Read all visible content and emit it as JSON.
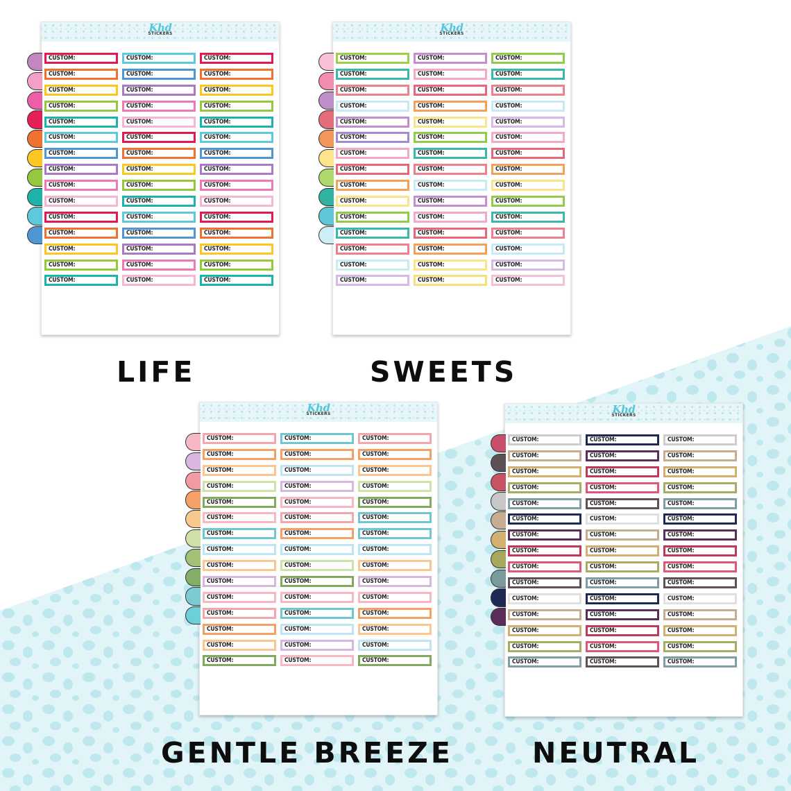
{
  "brand": {
    "script": "Khd",
    "word": "STICKERS"
  },
  "label_text": "CUSTOM:",
  "sheets": [
    {
      "title": "LIFE",
      "tab_colors": [
        "#c286c1",
        "#f3a0c7",
        "#ec5fa8",
        "#e61f57",
        "#f07030",
        "#fbc823",
        "#94c83d",
        "#1db3a8",
        "#5ec9dc",
        "#4f96d4"
      ],
      "columns": [
        [
          "#e31a52",
          "#f07030",
          "#fbc823",
          "#94c83d",
          "#1db3a8",
          "#5ec9dc",
          "#4f96d4",
          "#a979c4",
          "#ee79b7",
          "#f6b5d2",
          "#e31a52",
          "#f07030",
          "#fbc823",
          "#94c83d",
          "#1db3a8"
        ],
        [
          "#5ec9dc",
          "#4f96d4",
          "#a979c4",
          "#ee79b7",
          "#f6b5d2",
          "#e31a52",
          "#f07030",
          "#fbc823",
          "#94c83d",
          "#1db3a8",
          "#5ec9dc",
          "#4f96d4",
          "#a979c4",
          "#ee79b7",
          "#f6b5d2"
        ],
        [
          "#e31a52",
          "#f07030",
          "#fbc823",
          "#94c83d",
          "#1db3a8",
          "#5ec9dc",
          "#4f96d4",
          "#a979c4",
          "#ee79b7",
          "#f6b5d2",
          "#e31a52",
          "#f07030",
          "#fbc823",
          "#94c83d",
          "#1db3a8"
        ]
      ]
    },
    {
      "title": "SWEETS",
      "tab_colors": [
        "#f8c1d8",
        "#f28db0",
        "#c08ec8",
        "#e46c7b",
        "#f2975c",
        "#fde48a",
        "#b0d76a",
        "#32b2a1",
        "#5fc7d6",
        "#cdeef4"
      ],
      "columns": [
        [
          "#9dd049",
          "#3ab8ad",
          "#ef7f8b",
          "#c7ebf5",
          "#c48dd0",
          "#a58ad6",
          "#f5a9c8",
          "#e76778",
          "#f3a058",
          "#fae48a",
          "#8fcc4b",
          "#3ab8ad",
          "#ef7f8b",
          "#c7ebf5",
          "#d8b8e4"
        ],
        [
          "#c48dd0",
          "#f5a9c8",
          "#e76778",
          "#f3a058",
          "#fae48a",
          "#8fcc4b",
          "#3ab8ad",
          "#ef7f8b",
          "#c7ebf5",
          "#c48dd0",
          "#f5a9c8",
          "#e76778",
          "#f3a058",
          "#fae48a",
          "#f5e07c"
        ],
        [
          "#8fcc4b",
          "#3ab8ad",
          "#ef7f8b",
          "#c7ebf5",
          "#d8b8e4",
          "#f5a9c8",
          "#e76778",
          "#f3a058",
          "#fae48a",
          "#8fcc4b",
          "#3ab8ad",
          "#ef7f8b",
          "#c7ebf5",
          "#d8b8e4",
          "#f5c0d4"
        ]
      ]
    },
    {
      "title": "GENTLE BREEZE",
      "tab_colors": [
        "#f6b9c4",
        "#d9b7e1",
        "#f39aa2",
        "#f5a065",
        "#f7c98e",
        "#cfe0a8",
        "#a4bf76",
        "#85ad68",
        "#7bcbd2",
        "#6ccfd9"
      ],
      "columns": [
        [
          "#f3a7ad",
          "#f3a065",
          "#fbc68d",
          "#cce3a6",
          "#82aa5f",
          "#f7b8c4",
          "#6fc7cf",
          "#bfe4f4",
          "#fbc68d",
          "#d7b7e0",
          "#f7b8c4",
          "#f3a7ad",
          "#f3a065",
          "#fbc68d",
          "#82aa5f"
        ],
        [
          "#6fc7cf",
          "#f3a065",
          "#bfe4f4",
          "#d7b7e0",
          "#f7b8c4",
          "#f3a7ad",
          "#f3a065",
          "#bfe4f4",
          "#cce3a6",
          "#82aa5f",
          "#f7b8c4",
          "#6fc7cf",
          "#bfe4f4",
          "#d7b7e0",
          "#f7b8c4"
        ],
        [
          "#f3a7ad",
          "#f3a065",
          "#fbc68d",
          "#cce3a6",
          "#82aa5f",
          "#6fc7cf",
          "#6fc7cf",
          "#bfe4f4",
          "#fbc68d",
          "#d7b7e0",
          "#f7b8c4",
          "#f3a065",
          "#fbc68d",
          "#bfe4f4",
          "#82aa5f"
        ]
      ]
    },
    {
      "title": "NEUTRAL",
      "tab_colors": [
        "#c8506b",
        "#5c5156",
        "#c75462",
        "#c7c7c7",
        "#c6ad90",
        "#d1b070",
        "#a7a85c",
        "#7b9a9c",
        "#1d2952",
        "#5c2c5a"
      ],
      "columns": [
        [
          "#cccccc",
          "#c6ad90",
          "#d1b070",
          "#a8ac60",
          "#7f9ea6",
          "#1d2952",
          "#5c2c5a",
          "#c0395a",
          "#e0577a",
          "#5c5156",
          "#e0e0e0",
          "#c6ad90",
          "#d1b070",
          "#a8ac60",
          "#7f9ea6"
        ],
        [
          "#1d2952",
          "#5c2c5a",
          "#c0395a",
          "#e0577a",
          "#5c5156",
          "#e0e0e0",
          "#c6ad90",
          "#d1b070",
          "#a8ac60",
          "#7f9ea6",
          "#1d2952",
          "#5c2c5a",
          "#c0395a",
          "#e0577a",
          "#5c5156"
        ],
        [
          "#cccccc",
          "#c6ad90",
          "#d1b070",
          "#a8ac60",
          "#7f9ea6",
          "#1d2952",
          "#5c2c5a",
          "#c0395a",
          "#e0577a",
          "#5c5156",
          "#e0e0e0",
          "#c6ad90",
          "#d1b070",
          "#a8ac60",
          "#7f9ea6"
        ]
      ]
    }
  ]
}
